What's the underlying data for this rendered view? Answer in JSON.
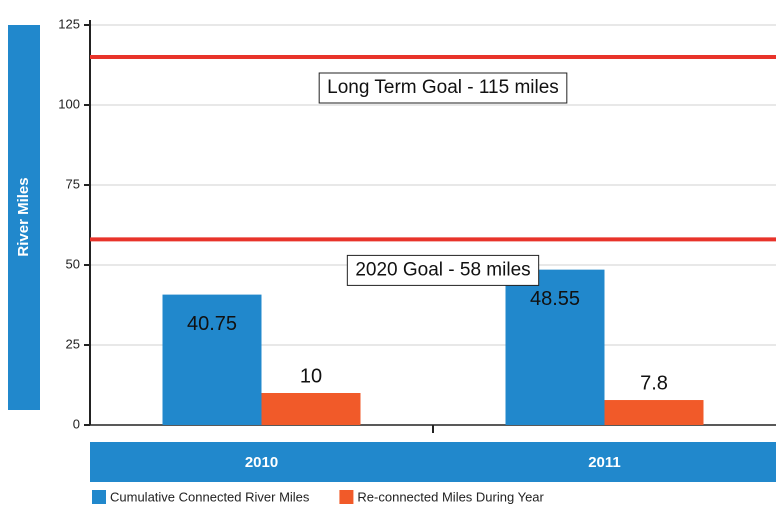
{
  "chart_data": {
    "type": "bar",
    "y_label": "River Miles",
    "categories": [
      "2010",
      "2011"
    ],
    "series": [
      {
        "name": "Cumulative Connected River Miles",
        "color": "#2188cc",
        "values": [
          40.75,
          48.55
        ]
      },
      {
        "name": "Re-connected Miles During Year",
        "color": "#f15a29",
        "values": [
          10,
          7.8
        ]
      }
    ],
    "reference_lines": [
      {
        "value": 115,
        "label": "Long Term Goal - 115 miles",
        "color": "#e8332a"
      },
      {
        "value": 58,
        "label": "2020 Goal - 58 miles",
        "color": "#e8332a"
      }
    ],
    "ylim": [
      0,
      125
    ],
    "yticks": [
      0,
      25,
      50,
      75,
      100,
      125
    ],
    "grid": true,
    "legend": "bottom-left"
  }
}
